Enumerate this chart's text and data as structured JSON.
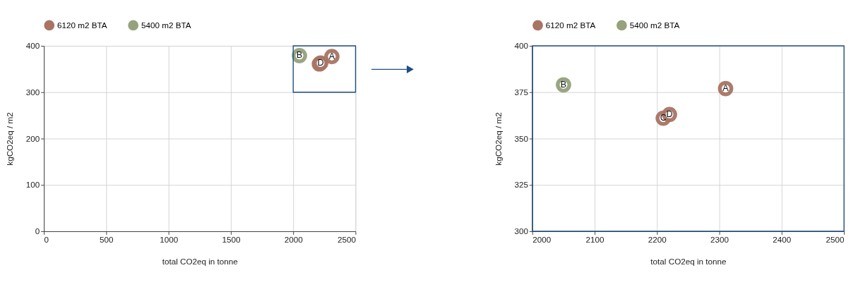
{
  "chart_data": [
    {
      "type": "scatter",
      "xlabel": "total CO2eq in tonne",
      "ylabel": "kgCO2eq / m2",
      "xlim": [
        0,
        2500
      ],
      "ylim": [
        0,
        400
      ],
      "xticks": [
        0,
        500,
        1000,
        1500,
        2000,
        2500
      ],
      "yticks": [
        0,
        100,
        200,
        300,
        400
      ],
      "grid": true,
      "legend": "top left",
      "marker": "circle",
      "series": [
        {
          "name": "6120 m2 BTA",
          "color": "#a87464",
          "x": [
            2310,
            2210,
            2220
          ],
          "values": [
            377,
            361,
            363
          ]
        },
        {
          "name": "5400 m2 BTA",
          "color": "#95a27c",
          "x": [
            2050
          ],
          "values": [
            379
          ]
        }
      ],
      "annotations": [
        {
          "text": "A",
          "x": 2310,
          "y": 377
        },
        {
          "text": "B",
          "x": 2050,
          "y": 379
        },
        {
          "text": "D",
          "x": 2220,
          "y": 363
        }
      ]
    },
    {
      "type": "scatter",
      "xlabel": "total CO2eq in tonne",
      "ylabel": "kgCO2eq / m2",
      "xlim": [
        2000,
        2500
      ],
      "ylim": [
        300,
        400
      ],
      "xticks": [
        2000,
        2100,
        2200,
        2300,
        2400,
        2500
      ],
      "yticks": [
        300,
        325,
        350,
        375,
        400
      ],
      "grid": true,
      "legend": "top left",
      "marker": "circle",
      "series": [
        {
          "name": "6120 m2 BTA",
          "color": "#a87464",
          "x": [
            2310,
            2210,
            2220
          ],
          "values": [
            377,
            361,
            363
          ]
        },
        {
          "name": "5400 m2 BTA",
          "color": "#95a27c",
          "x": [
            2050
          ],
          "values": [
            379
          ]
        }
      ],
      "annotations": [
        {
          "text": "A",
          "x": 2310,
          "y": 377
        },
        {
          "text": "B",
          "x": 2050,
          "y": 379
        },
        {
          "text": "C",
          "x": 2210,
          "y": 361
        },
        {
          "text": "D",
          "x": 2220,
          "y": 363
        }
      ]
    }
  ]
}
